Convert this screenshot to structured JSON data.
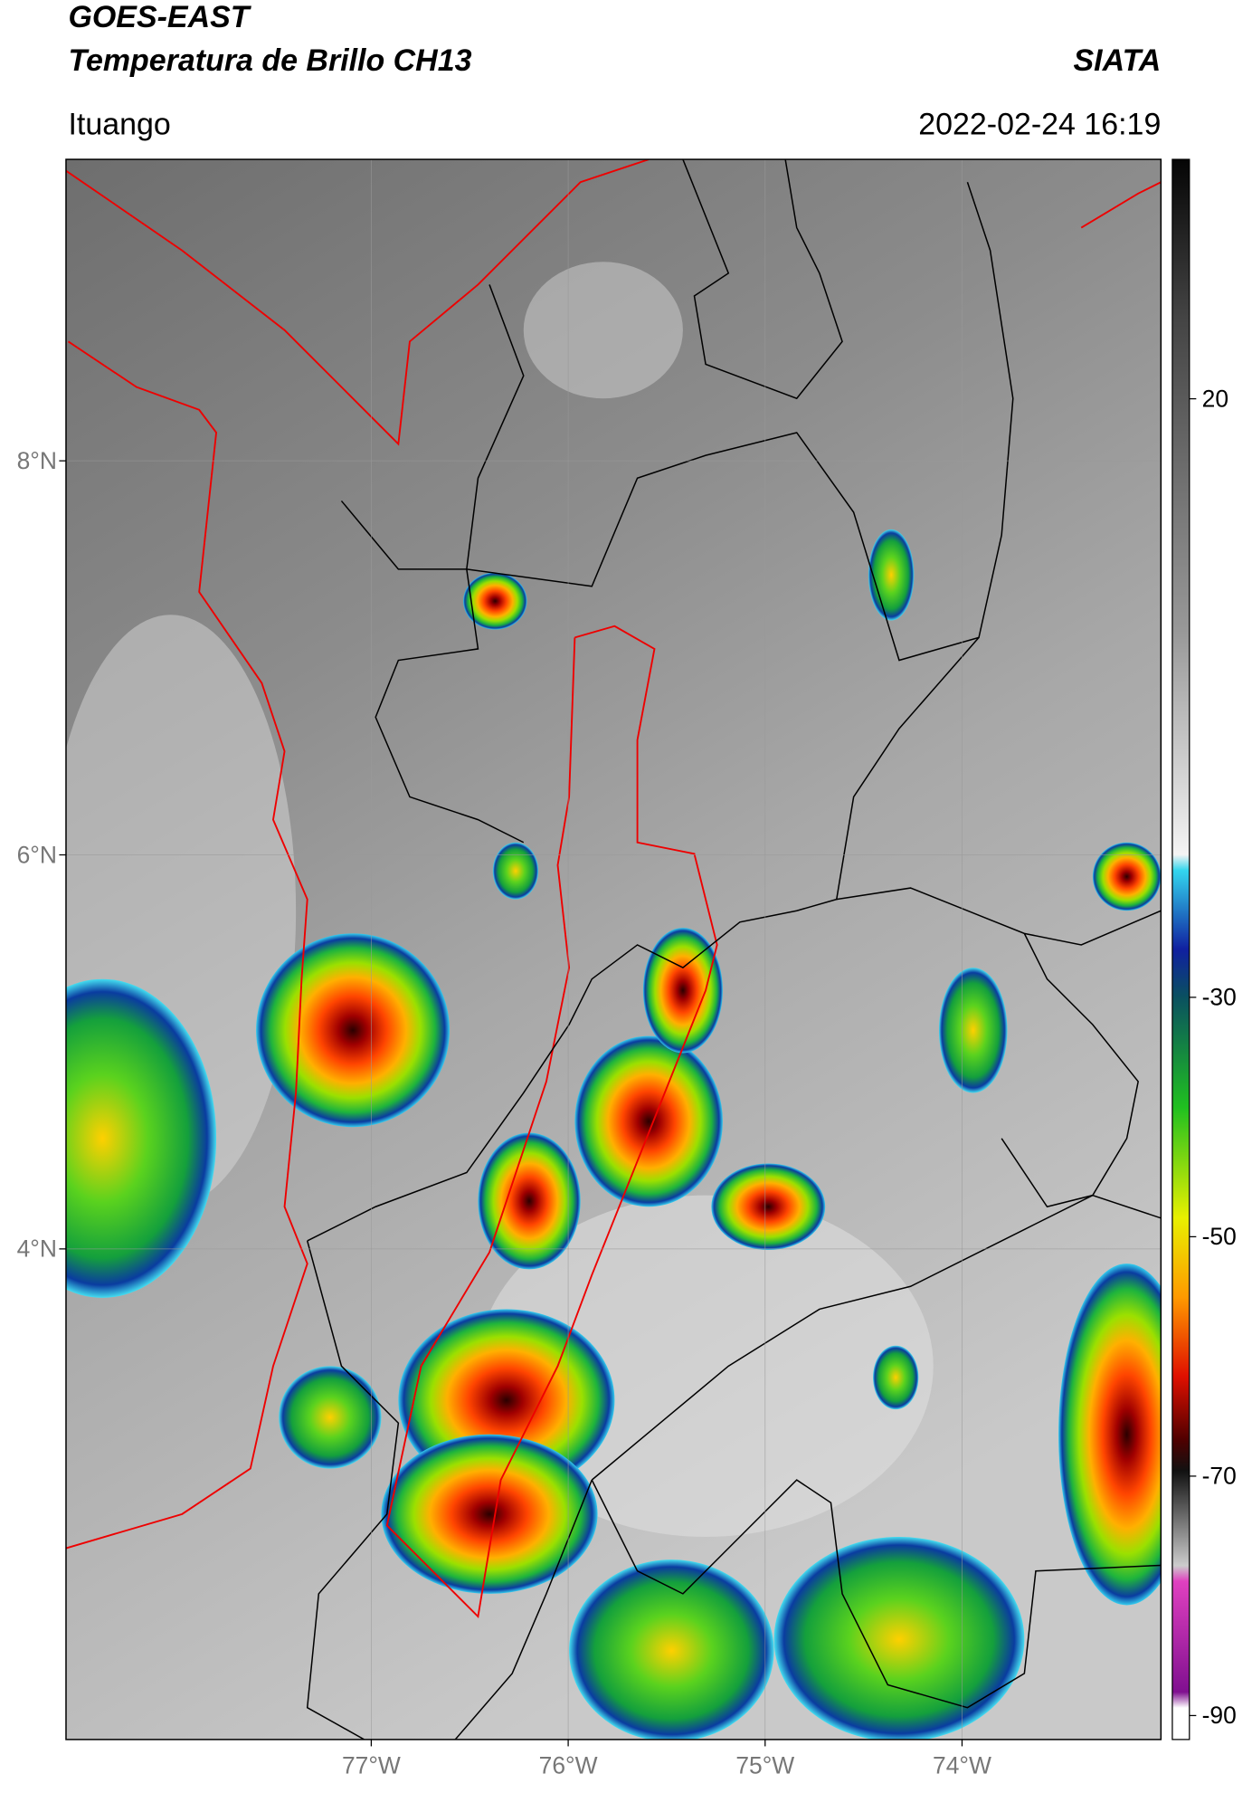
{
  "header": {
    "title": "GOES-EAST",
    "subtitle": "Temperatura de Brillo CH13",
    "brand": "SIATA",
    "location": "Ituango",
    "timestamp": "2022-02-24 16:19"
  },
  "map": {
    "lat_range": [
      1.51,
      9.53
    ],
    "lon_range": [
      -78.55,
      -72.99
    ],
    "lat_ticks": [
      {
        "value": 8,
        "label": "8°N"
      },
      {
        "value": 6,
        "label": "6°N"
      },
      {
        "value": 4,
        "label": "4°N"
      }
    ],
    "lon_ticks": [
      {
        "value": -77,
        "label": "77°W"
      },
      {
        "value": -76,
        "label": "76°W"
      },
      {
        "value": -75,
        "label": "75°W"
      },
      {
        "value": -74,
        "label": "74°W"
      }
    ],
    "grid": true
  },
  "colorbar": {
    "range": [
      -92,
      40
    ],
    "ticks": [
      20,
      -30,
      -50,
      -70,
      -90
    ]
  }
}
